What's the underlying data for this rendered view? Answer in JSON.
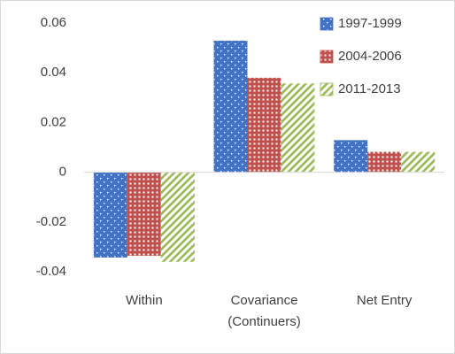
{
  "chart_data": {
    "type": "bar",
    "categories": [
      "Within",
      "Covariance (Continuers)",
      "Net Entry"
    ],
    "series": [
      {
        "name": "1997-1999",
        "color": "#4472c4",
        "values": [
          -0.0343,
          0.0529,
          0.0129
        ]
      },
      {
        "name": "2004-2006",
        "color": "#c0504d",
        "values": [
          -0.0336,
          0.038,
          0.0082
        ]
      },
      {
        "name": "2011-2013",
        "color": "#9bbb59",
        "values": [
          -0.036,
          0.0357,
          0.0082
        ]
      }
    ],
    "ylim": [
      -0.04,
      0.06
    ],
    "yticks": [
      -0.04,
      -0.02,
      0,
      0.02,
      0.04,
      0.06
    ],
    "grid": false,
    "legend": "top-right"
  }
}
